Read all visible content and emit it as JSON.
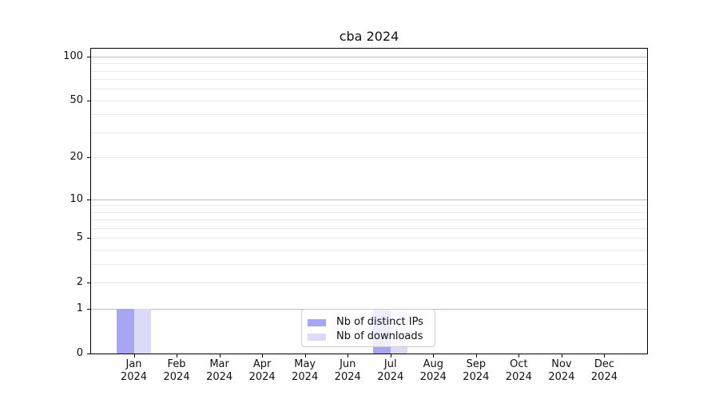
{
  "chart_data": {
    "type": "bar",
    "title": "cba 2024",
    "categories": [
      "Jan",
      "Feb",
      "Mar",
      "Apr",
      "May",
      "Jun",
      "Jul",
      "Aug",
      "Sep",
      "Oct",
      "Nov",
      "Dec"
    ],
    "category_year": "2024",
    "series": [
      {
        "name": "Nb of distinct IPs",
        "color": "#a6a6f2",
        "values": [
          1,
          0,
          0,
          0,
          0,
          0,
          1,
          0,
          0,
          0,
          0,
          0
        ]
      },
      {
        "name": "Nb of downloads",
        "color": "#dbdbf8",
        "values": [
          1,
          0,
          0,
          0,
          0,
          0,
          1,
          0,
          0,
          0,
          0,
          0
        ]
      }
    ],
    "xlabel": "",
    "ylabel": "",
    "yscale": "log1p",
    "ylim": [
      0,
      113
    ],
    "yticks": [
      0,
      1,
      2,
      5,
      10,
      20,
      50,
      100
    ],
    "grid": {
      "major": [
        1,
        10,
        100
      ],
      "minor": [
        2,
        3,
        4,
        5,
        6,
        7,
        8,
        9,
        20,
        30,
        40,
        50,
        60,
        70,
        80,
        90
      ]
    },
    "legend": {
      "position": "lower center",
      "entries": [
        "Nb of distinct IPs",
        "Nb of downloads"
      ]
    },
    "colors": {
      "grid_major": "#bdbdbd",
      "grid_minor": "#e9e9e9",
      "spine": "#000000",
      "text": "#111111"
    }
  }
}
